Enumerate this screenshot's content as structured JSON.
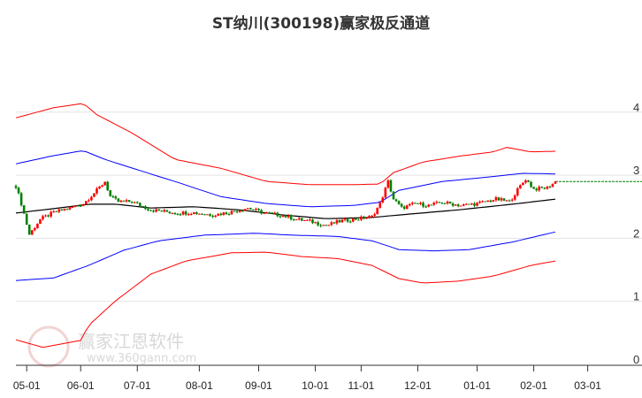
{
  "title": "ST纳川(300198)赢家极反通道",
  "watermark": {
    "brand": "赢家江恩软件",
    "url": "www.360gann.com",
    "seal": [
      "江",
      "赢",
      "恩",
      "家"
    ]
  },
  "chart_data": {
    "type": "candlestick-channel",
    "title": "ST纳川(300198)赢家极反通道",
    "ylim": [
      0,
      4.2
    ],
    "y_ticks": [
      "0",
      "1",
      "2",
      "3",
      "4"
    ],
    "y_tick_values": [
      0,
      1,
      2,
      3,
      4
    ],
    "t_range": [
      0,
      232
    ],
    "x_ticks": [
      {
        "label": "05-01",
        "t": 4
      },
      {
        "label": "06-01",
        "t": 24
      },
      {
        "label": "07-01",
        "t": 45
      },
      {
        "label": "08-01",
        "t": 68
      },
      {
        "label": "09-01",
        "t": 90
      },
      {
        "label": "10-01",
        "t": 111
      },
      {
        "label": "11-01",
        "t": 128
      },
      {
        "label": "12-01",
        "t": 149
      },
      {
        "label": "01-01",
        "t": 171
      },
      {
        "label": "02-01",
        "t": 192
      },
      {
        "label": "03-01",
        "t": 212
      }
    ],
    "last_price": 2.9,
    "colors": {
      "up": "#ff0000",
      "down": "#008000",
      "outer": "#ff0000",
      "inner": "#0000ff",
      "mid": "#000000",
      "last": "#008000"
    },
    "price_points": {
      "t": [
        0,
        2,
        5,
        9,
        14,
        20,
        25,
        30,
        33,
        35,
        38,
        43,
        50,
        60,
        65,
        73,
        79,
        86,
        92,
        99,
        104,
        109,
        115,
        120,
        125,
        132,
        135,
        138,
        140,
        143,
        148,
        153,
        158,
        165,
        171,
        178,
        183,
        187,
        189,
        192,
        197,
        200
      ],
      "v": [
        2.83,
        2.55,
        2.06,
        2.3,
        2.41,
        2.48,
        2.55,
        2.76,
        2.9,
        2.66,
        2.58,
        2.58,
        2.45,
        2.4,
        2.41,
        2.37,
        2.41,
        2.48,
        2.4,
        2.36,
        2.3,
        2.27,
        2.2,
        2.27,
        2.3,
        2.34,
        2.55,
        2.9,
        2.62,
        2.48,
        2.55,
        2.52,
        2.57,
        2.52,
        2.55,
        2.62,
        2.58,
        2.83,
        2.94,
        2.78,
        2.8,
        2.9
      ]
    },
    "series": [
      {
        "name": "upper-outer",
        "color": "#ff0000",
        "t": [
          0,
          14,
          25,
          30,
          43,
          59,
          76,
          93,
          109,
          125,
          135,
          140,
          151,
          164,
          177,
          182,
          191,
          200
        ],
        "v": [
          3.91,
          4.07,
          4.14,
          3.96,
          3.67,
          3.25,
          3.11,
          2.9,
          2.85,
          2.85,
          2.86,
          3.04,
          3.21,
          3.3,
          3.37,
          3.44,
          3.37,
          3.38
        ]
      },
      {
        "name": "upper-inner",
        "color": "#0000ff",
        "t": [
          0,
          14,
          25,
          33,
          50,
          59,
          76,
          93,
          109,
          125,
          135,
          142,
          158,
          175,
          188,
          200
        ],
        "v": [
          3.18,
          3.31,
          3.39,
          3.25,
          3.02,
          2.9,
          2.66,
          2.55,
          2.5,
          2.52,
          2.57,
          2.76,
          2.9,
          2.97,
          3.03,
          3.02
        ]
      },
      {
        "name": "middle",
        "color": "#000000",
        "t": [
          0,
          14,
          27,
          37,
          50,
          66,
          83,
          99,
          115,
          132,
          145,
          164,
          184,
          200
        ],
        "v": [
          2.4,
          2.47,
          2.54,
          2.54,
          2.48,
          2.5,
          2.45,
          2.37,
          2.31,
          2.33,
          2.38,
          2.45,
          2.54,
          2.62
        ]
      },
      {
        "name": "lower-inner",
        "color": "#0000ff",
        "t": [
          0,
          14,
          27,
          40,
          53,
          70,
          89,
          102,
          119,
          132,
          142,
          155,
          168,
          184,
          200
        ],
        "v": [
          1.33,
          1.37,
          1.57,
          1.81,
          1.96,
          2.05,
          2.08,
          2.05,
          2.03,
          1.96,
          1.82,
          1.8,
          1.82,
          1.94,
          2.1
        ]
      },
      {
        "name": "lower-outer",
        "color": "#ff0000",
        "t": [
          0,
          10,
          24,
          27,
          37,
          50,
          63,
          80,
          93,
          106,
          119,
          132,
          142,
          151,
          164,
          177,
          191,
          200
        ],
        "v": [
          0.39,
          0.27,
          0.38,
          0.62,
          1.01,
          1.43,
          1.64,
          1.77,
          1.78,
          1.71,
          1.68,
          1.57,
          1.36,
          1.29,
          1.32,
          1.4,
          1.57,
          1.64
        ]
      }
    ]
  }
}
